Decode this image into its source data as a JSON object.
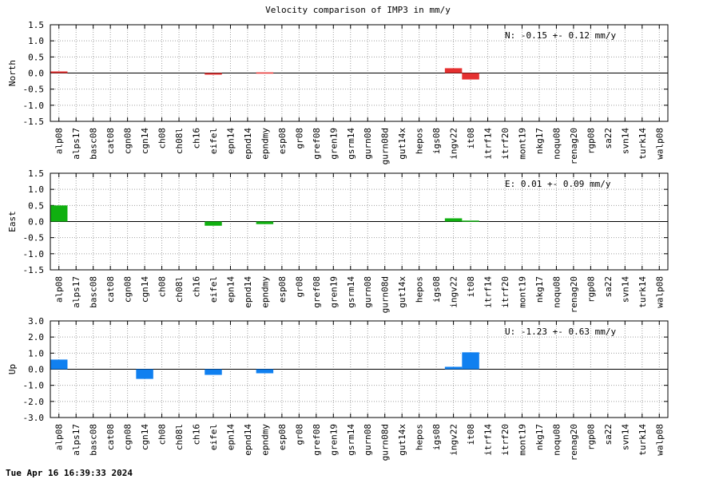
{
  "chart_data": {
    "type": "bar",
    "title": "Velocity comparison of IMP3 in mm/y",
    "categories": [
      "alp08",
      "alps17",
      "basc08",
      "cat08",
      "cgn08",
      "cgn14",
      "ch08",
      "ch08l",
      "ch16",
      "eifel",
      "epn14",
      "epnd14",
      "epndmy",
      "esp08",
      "gr08",
      "gref08",
      "gren19",
      "gsrm14",
      "gurn08",
      "gurn08d",
      "gut14x",
      "hepos",
      "igs08",
      "ingv22",
      "it08",
      "itrf14",
      "itrf20",
      "mont19",
      "nkg17",
      "noqu08",
      "renag20",
      "rgp08",
      "sa22",
      "svn14",
      "turk14",
      "walp08"
    ],
    "panels": [
      {
        "ylabel": "North",
        "ylim": [
          -1.5,
          1.5
        ],
        "yticks": [
          "1.5",
          "1.0",
          "0.5",
          "0.0",
          "-0.5",
          "-1.0",
          "-1.5"
        ],
        "ytick_values": [
          1.5,
          1.0,
          0.5,
          0.0,
          -0.5,
          -1.0,
          -1.5
        ],
        "color": "#e53030",
        "stat": "N:  -0.15 +-  0.12 mm/y",
        "values": [
          0.05,
          0,
          0,
          0,
          0,
          0,
          0,
          0,
          0,
          -0.05,
          0,
          0,
          0.02,
          0,
          0,
          0,
          0,
          0,
          0,
          0,
          0,
          0,
          0,
          0.15,
          -0.2,
          0,
          0,
          0,
          0,
          0,
          0,
          0,
          0,
          0,
          0,
          0
        ]
      },
      {
        "ylabel": "East",
        "ylim": [
          -1.5,
          1.5
        ],
        "yticks": [
          "1.5",
          "1.0",
          "0.5",
          "0.0",
          "-0.5",
          "-1.0",
          "-1.5"
        ],
        "ytick_values": [
          1.5,
          1.0,
          0.5,
          0.0,
          -0.5,
          -1.0,
          -1.5
        ],
        "color": "#10b010",
        "stat": "E:   0.01 +-  0.09 mm/y",
        "values": [
          0.5,
          0,
          0,
          0,
          0,
          0,
          0,
          0,
          0,
          -0.13,
          0,
          0,
          -0.08,
          0,
          0,
          0,
          0,
          0,
          0,
          0,
          0,
          0,
          0,
          0.1,
          0.03,
          0,
          0,
          0,
          0,
          0,
          0,
          0,
          0,
          0,
          0,
          0
        ]
      },
      {
        "ylabel": "Up",
        "ylim": [
          -3.0,
          3.0
        ],
        "yticks": [
          "3.0",
          "2.0",
          "1.0",
          "0.0",
          "-1.0",
          "-2.0",
          "-3.0"
        ],
        "ytick_values": [
          3.0,
          2.0,
          1.0,
          0.0,
          -1.0,
          -2.0,
          -3.0
        ],
        "color": "#1080f0",
        "stat": "U:  -1.23 +-  0.63 mm/y",
        "values": [
          0.6,
          0,
          0,
          0,
          0,
          -0.6,
          0,
          0,
          0,
          -0.35,
          0,
          0,
          -0.25,
          0,
          0,
          0,
          0,
          0,
          0,
          0,
          0,
          0,
          0,
          0.15,
          1.05,
          0,
          0,
          0,
          0,
          0,
          0,
          0,
          0,
          0,
          0,
          0
        ]
      }
    ],
    "grid": true
  },
  "footer": {
    "timestamp": "Tue Apr 16 16:39:33 2024"
  }
}
